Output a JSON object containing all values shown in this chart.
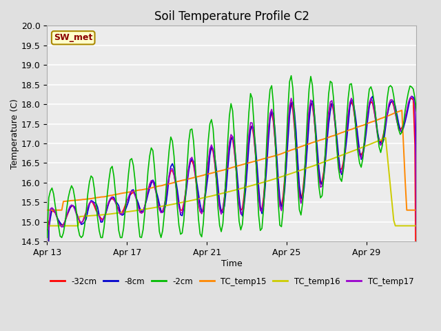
{
  "title": "Soil Temperature Profile C2",
  "xlabel": "Time",
  "ylabel": "Temperature (C)",
  "ylim": [
    14.5,
    20.0
  ],
  "yticks": [
    14.5,
    15.0,
    15.5,
    16.0,
    16.5,
    17.0,
    17.5,
    18.0,
    18.5,
    19.0,
    19.5,
    20.0
  ],
  "bg_color": "#e0e0e0",
  "plot_bg_color": "#ececec",
  "annotation_text": "SW_met",
  "annotation_color": "#8b0000",
  "annotation_bg": "#ffffcc",
  "annotation_border": "#aa8800",
  "series": {
    "-32cm": {
      "color": "#ff0000",
      "lw": 1.2,
      "zorder": 3
    },
    "-8cm": {
      "color": "#0000cc",
      "lw": 1.2,
      "zorder": 3
    },
    "-2cm": {
      "color": "#00bb00",
      "lw": 1.2,
      "zorder": 4
    },
    "TC_temp15": {
      "color": "#ff8800",
      "lw": 1.4,
      "zorder": 3
    },
    "TC_temp16": {
      "color": "#cccc00",
      "lw": 1.4,
      "zorder": 3
    },
    "TC_temp17": {
      "color": "#9900cc",
      "lw": 1.2,
      "zorder": 3
    }
  },
  "legend_order": [
    "-32cm",
    "-8cm",
    "-2cm",
    "TC_temp15",
    "TC_temp16",
    "TC_temp17"
  ],
  "xtick_labels": [
    "Apr 13",
    "Apr 17",
    "Apr 21",
    "Apr 25",
    "Apr 29"
  ],
  "xtick_days": [
    0,
    4,
    8,
    12,
    16
  ],
  "xlim": [
    0,
    18.5
  ],
  "figsize": [
    6.4,
    4.8
  ],
  "dpi": 100
}
